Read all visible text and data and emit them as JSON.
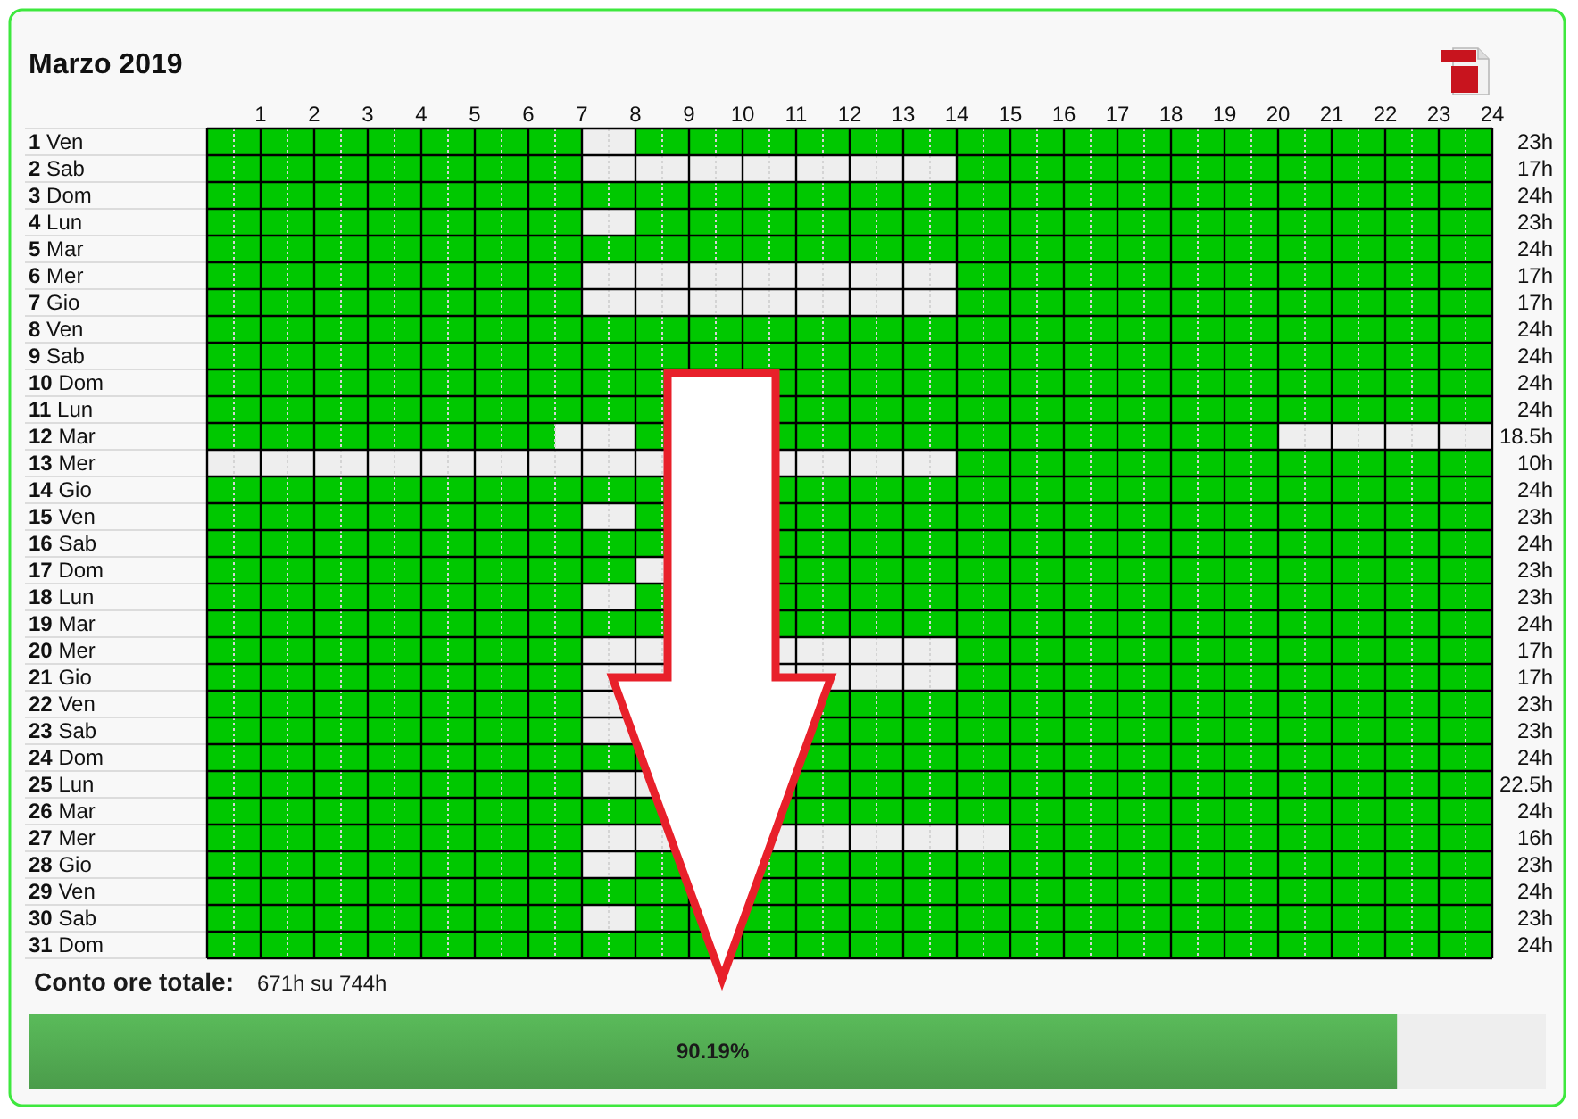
{
  "chart_data": {
    "type": "bar",
    "orientation": "horizontal",
    "title": "Marzo 2019",
    "categories": [
      "1 Ven",
      "2 Sab",
      "3 Dom",
      "4 Lun",
      "5 Mar",
      "6 Mer",
      "7 Gio",
      "8 Ven",
      "9 Sab",
      "10 Dom",
      "11 Lun",
      "12 Mar",
      "13 Mer",
      "14 Gio",
      "15 Ven",
      "16 Sab",
      "17 Dom",
      "18 Lun",
      "19 Mar",
      "20 Mer",
      "21 Gio",
      "22 Ven",
      "23 Sab",
      "24 Dom",
      "25 Lun",
      "26 Mar",
      "27 Mer",
      "28 Gio",
      "29 Ven",
      "30 Sab",
      "31 Dom"
    ],
    "y2_categories": [
      "23h",
      "17h",
      "24h",
      "23h",
      "24h",
      "17h",
      "17h",
      "24h",
      "24h",
      "24h",
      "24h",
      "18.5h",
      "10h",
      "24h",
      "23h",
      "24h",
      "23h",
      "23h",
      "24h",
      "17h",
      "17h",
      "23h",
      "23h",
      "24h",
      "22.5h",
      "24h",
      "16h",
      "23h",
      "24h",
      "23h",
      "24h"
    ],
    "xlim": [
      0,
      24
    ],
    "xticks": [
      1,
      2,
      3,
      4,
      5,
      6,
      7,
      8,
      9,
      10,
      11,
      12,
      13,
      14,
      15,
      16,
      17,
      18,
      19,
      20,
      21,
      22,
      23,
      24
    ],
    "grid": true,
    "annotations": [
      "Conto ore totale:",
      "671h su 744h",
      "90.19%"
    ],
    "series": [
      {
        "color": "#00c800",
        "base": [
          0,
          0,
          0,
          0,
          0,
          0,
          0,
          0,
          0,
          0,
          0,
          0,
          14,
          0,
          0,
          0,
          0,
          0,
          0,
          0,
          0,
          0,
          0,
          0,
          0,
          0,
          0,
          0,
          0,
          0,
          0
        ],
        "values": [
          7,
          7,
          24,
          7,
          24,
          7,
          7,
          24,
          24,
          24,
          24,
          6.5,
          10,
          24,
          7,
          24,
          8,
          7,
          24,
          7,
          7,
          7,
          7,
          24,
          7,
          24,
          7,
          7,
          24,
          7,
          24
        ]
      },
      {
        "color": "#00c800",
        "base": [
          8,
          14,
          null,
          8,
          null,
          14,
          14,
          null,
          null,
          null,
          null,
          8,
          null,
          null,
          8,
          null,
          9,
          8,
          null,
          14,
          14,
          8,
          8,
          null,
          8.5,
          null,
          15,
          8,
          null,
          8,
          null
        ],
        "values": [
          16,
          10,
          null,
          16,
          null,
          10,
          10,
          null,
          null,
          null,
          null,
          12,
          null,
          null,
          16,
          null,
          15,
          16,
          null,
          10,
          10,
          16,
          16,
          null,
          15.5,
          null,
          9,
          16,
          null,
          16,
          null
        ]
      }
    ]
  }
}
